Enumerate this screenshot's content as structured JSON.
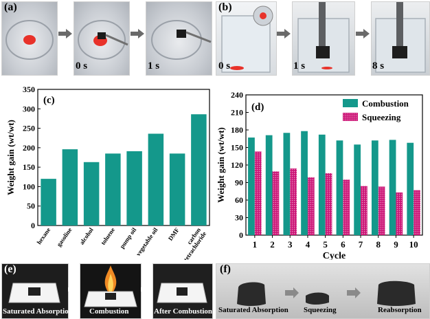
{
  "panels": {
    "a": {
      "label": "(a)",
      "times": [
        "0 s",
        "1 s"
      ]
    },
    "b": {
      "label": "(b)",
      "times": [
        "0 s",
        "1 s",
        "8 s"
      ]
    },
    "e": {
      "label": "(e)",
      "captions": [
        "Saturated  Absorption",
        "Combustion",
        "After Combustion"
      ]
    },
    "f": {
      "label": "(f)",
      "captions": [
        "Saturated  Absorption",
        "Squeezing",
        "Reabsorption"
      ]
    }
  },
  "colors": {
    "teal": "#14988b",
    "magenta": "#cc1677",
    "red_liquid": "#e8322a"
  },
  "chart_data": [
    {
      "type": "bar",
      "panel_label": "(c)",
      "categories": [
        "hexane",
        "gasoline",
        "alcohol",
        "toluene",
        "pump oil",
        "vegetable oil",
        "DMF",
        "carbon tetrachloride"
      ],
      "values": [
        120,
        196,
        163,
        185,
        191,
        236,
        185,
        286
      ],
      "ylabel": "Weight gain (wt/wt)",
      "ylim": [
        0,
        350
      ],
      "yticks": [
        "0",
        "50",
        "100",
        "150",
        "200",
        "250",
        "300",
        "350"
      ],
      "color": "#14988b"
    },
    {
      "type": "bar",
      "panel_label": "(d)",
      "categories": [
        "1",
        "2",
        "3",
        "4",
        "5",
        "6",
        "7",
        "8",
        "9",
        "10"
      ],
      "series": [
        {
          "name": "Combustion",
          "values": [
            167,
            171,
            175,
            178,
            172,
            162,
            155,
            162,
            163,
            158
          ],
          "color": "#14988b"
        },
        {
          "name": "Squeezing",
          "values": [
            143,
            109,
            114,
            99,
            106,
            95,
            84,
            83,
            73,
            77
          ],
          "color": "#cc1677"
        }
      ],
      "xlabel": "Cycle",
      "ylabel": "Weight gain (wt/wt)",
      "ylim": [
        0,
        240
      ],
      "yticks": [
        "0",
        "30",
        "60",
        "90",
        "120",
        "150",
        "180",
        "210",
        "240"
      ],
      "legend": "top-right"
    }
  ]
}
